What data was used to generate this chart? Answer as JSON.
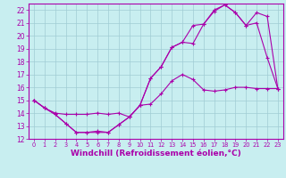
{
  "background_color": "#c8eef0",
  "grid_color": "#a0ccd4",
  "line_color": "#aa00aa",
  "xlabel": "Windchill (Refroidissement éolien,°C)",
  "xlabel_fontsize": 6.5,
  "xlim": [
    -0.5,
    23.5
  ],
  "ylim": [
    12,
    22.5
  ],
  "yticks": [
    12,
    13,
    14,
    15,
    16,
    17,
    18,
    19,
    20,
    21,
    22
  ],
  "xticks": [
    0,
    1,
    2,
    3,
    4,
    5,
    6,
    7,
    8,
    9,
    10,
    11,
    12,
    13,
    14,
    15,
    16,
    17,
    18,
    19,
    20,
    21,
    22,
    23
  ],
  "series1_x": [
    0,
    1,
    2,
    3,
    4,
    5,
    6,
    7,
    8,
    9,
    10,
    11,
    12,
    13,
    14,
    15,
    16,
    17,
    18,
    19,
    20,
    21,
    22,
    23
  ],
  "series1_y": [
    15.0,
    14.4,
    14.0,
    13.9,
    13.9,
    13.9,
    14.0,
    13.9,
    14.0,
    13.7,
    14.6,
    14.7,
    15.5,
    16.5,
    17.0,
    16.6,
    15.8,
    15.7,
    15.8,
    16.0,
    16.0,
    15.9,
    15.9,
    15.9
  ],
  "series2_x": [
    0,
    1,
    2,
    3,
    4,
    5,
    6,
    7,
    8,
    9,
    10,
    11,
    12,
    13,
    14,
    15,
    16,
    17,
    18,
    19,
    20,
    21,
    22,
    23
  ],
  "series2_y": [
    15.0,
    14.4,
    13.9,
    13.2,
    12.5,
    12.5,
    12.6,
    12.5,
    13.1,
    13.7,
    14.6,
    16.7,
    17.6,
    19.1,
    19.5,
    20.8,
    20.9,
    22.0,
    22.4,
    21.8,
    20.8,
    21.0,
    18.3,
    15.9
  ],
  "series3_x": [
    0,
    1,
    2,
    3,
    4,
    5,
    6,
    7,
    8,
    9,
    10,
    11,
    12,
    13,
    14,
    15,
    16,
    17,
    18,
    19,
    20,
    21,
    22,
    23
  ],
  "series3_y": [
    15.0,
    14.4,
    13.9,
    13.2,
    12.5,
    12.5,
    12.5,
    12.5,
    13.1,
    13.7,
    14.6,
    16.7,
    17.6,
    19.1,
    19.5,
    19.4,
    20.9,
    21.9,
    22.4,
    21.8,
    20.8,
    21.8,
    21.5,
    15.9
  ]
}
